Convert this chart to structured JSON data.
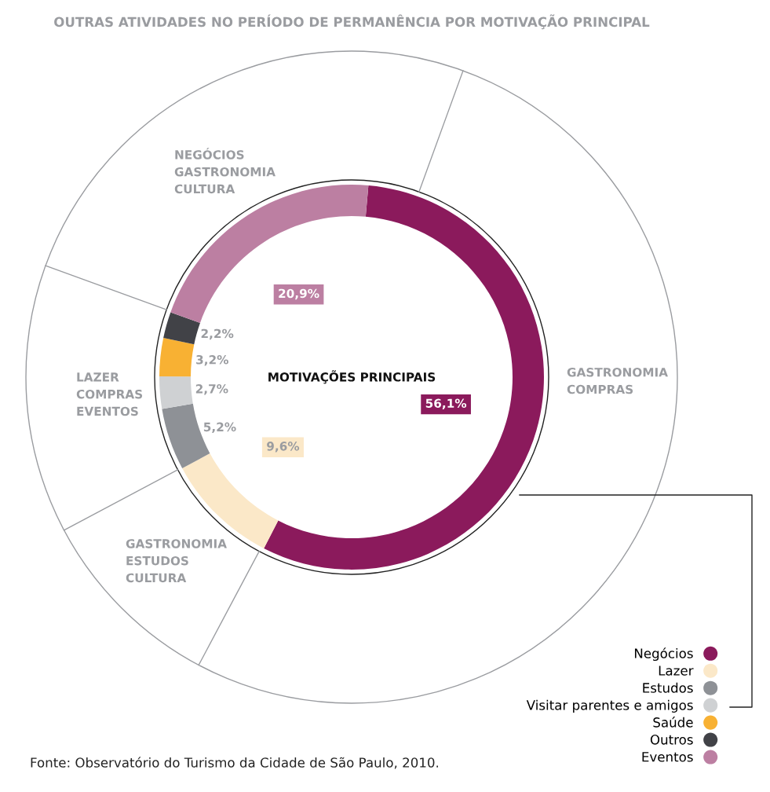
{
  "chart_data": {
    "type": "donut",
    "title": "OUTRAS ATIVIDADES NO PERÍODO DE PERMANÊNCIA POR MOTIVAÇÃO PRINCIPAL",
    "subtitle": "MOTIVAÇÕES PRINCIPAIS",
    "categories": [
      "Negócios",
      "Lazer",
      "Estudos",
      "Visitar parentes e amigos",
      "Saúde",
      "Outros",
      "Eventos"
    ],
    "values": [
      56.1,
      9.6,
      5.2,
      2.7,
      3.2,
      2.2,
      20.9
    ],
    "colors": [
      "#8b1a5c",
      "#fbe8c8",
      "#8e9196",
      "#cfd1d3",
      "#f8b133",
      "#414247",
      "#bc7fa2"
    ],
    "value_labels": [
      "56,1%",
      "9,6%",
      "5,2%",
      "2,7%",
      "3,2%",
      "2,2%",
      "20,9%"
    ],
    "legend": "bottom right",
    "annotations": [
      "GASTRONOMIA\nCOMPRAS",
      "GASTRONOMIA\nESTUDOS\nCULTURA",
      "LAZER\nCOMPRAS\nEVENTOS",
      "NEGÓCIOS\nGASTRONOMIA\nCULTURA",
      "Fonte: Observatório do Turismo da Cidade de São Paulo, 2010."
    ]
  }
}
